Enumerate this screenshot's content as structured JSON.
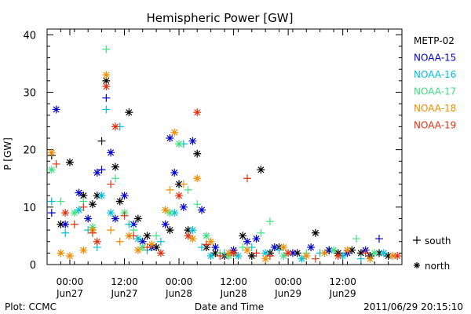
{
  "chart_data": {
    "type": "scatter",
    "title": "Hemispheric Power [GW]",
    "ylabel": "P [GW]",
    "xlabel": "Date and Time",
    "xlim": [
      "2011-06-26T19:00",
      "2011-06-30T01:00"
    ],
    "ylim": [
      0,
      41
    ],
    "grid": false,
    "y_ticks": [
      "0",
      "10",
      "20",
      "30",
      "40"
    ],
    "x_ticks": [
      {
        "time": "00:00",
        "date": "Jun27",
        "at": "2011-06-27T00:00"
      },
      {
        "time": "12:00",
        "date": "Jun27",
        "at": "2011-06-27T12:00"
      },
      {
        "time": "00:00",
        "date": "Jun28",
        "at": "2011-06-28T00:00"
      },
      {
        "time": "12:00",
        "date": "Jun28",
        "at": "2011-06-28T12:00"
      },
      {
        "time": "00:00",
        "date": "Jun29",
        "at": "2011-06-29T00:00"
      },
      {
        "time": "12:00",
        "date": "Jun29",
        "at": "2011-06-29T12:00"
      }
    ],
    "legend_placement": "right",
    "marker_legend": [
      {
        "marker": "+",
        "label": "south"
      },
      {
        "marker": "*",
        "label": "north"
      }
    ],
    "series": [
      {
        "name": "METP-02",
        "color": "#000000",
        "points": [
          [
            "2011-06-26T20:00",
            19,
            "+"
          ],
          [
            "2011-06-26T22:00",
            7,
            "*"
          ],
          [
            "2011-06-27T00:00",
            17.8,
            "*"
          ],
          [
            "2011-06-27T03:00",
            12,
            "*"
          ],
          [
            "2011-06-27T05:00",
            10.5,
            "*"
          ],
          [
            "2011-06-27T06:00",
            12,
            "*"
          ],
          [
            "2011-06-27T07:00",
            21.5,
            "+"
          ],
          [
            "2011-06-27T08:00",
            32,
            "*"
          ],
          [
            "2011-06-27T10:00",
            17,
            "*"
          ],
          [
            "2011-06-27T11:00",
            11,
            "*"
          ],
          [
            "2011-06-27T13:00",
            26.5,
            "*"
          ],
          [
            "2011-06-27T15:00",
            8,
            "*"
          ],
          [
            "2011-06-27T17:00",
            5,
            "*"
          ],
          [
            "2011-06-27T19:00",
            3,
            "*"
          ],
          [
            "2011-06-27T22:00",
            6,
            "*"
          ],
          [
            "2011-06-28T00:00",
            14,
            "*"
          ],
          [
            "2011-06-28T02:00",
            6,
            "*"
          ],
          [
            "2011-06-28T04:00",
            19.3,
            "*"
          ],
          [
            "2011-06-28T06:00",
            3,
            "*"
          ],
          [
            "2011-06-28T08:00",
            2,
            "*"
          ],
          [
            "2011-06-28T10:00",
            1.5,
            "*"
          ],
          [
            "2011-06-28T14:00",
            5,
            "*"
          ],
          [
            "2011-06-28T16:00",
            1.5,
            "*"
          ],
          [
            "2011-06-28T18:00",
            16.5,
            "*"
          ],
          [
            "2011-06-28T20:00",
            2,
            "*"
          ],
          [
            "2011-06-28T22:00",
            3,
            "*"
          ],
          [
            "2011-06-29T02:00",
            2,
            "*"
          ],
          [
            "2011-06-29T06:00",
            5.5,
            "*"
          ],
          [
            "2011-06-29T09:00",
            2.5,
            "*"
          ],
          [
            "2011-06-29T11:00",
            2,
            "*"
          ],
          [
            "2011-06-29T14:00",
            2.5,
            "*"
          ],
          [
            "2011-06-29T16:00",
            2,
            "*"
          ],
          [
            "2011-06-29T18:00",
            1.5,
            "*"
          ],
          [
            "2011-06-29T20:00",
            2,
            "*"
          ],
          [
            "2011-06-29T22:00",
            1.5,
            "*"
          ]
        ]
      },
      {
        "name": "NOAA-15",
        "color": "#0000cc",
        "points": [
          [
            "2011-06-26T21:00",
            27,
            "*"
          ],
          [
            "2011-06-26T20:00",
            9,
            "+"
          ],
          [
            "2011-06-26T23:00",
            7,
            "*"
          ],
          [
            "2011-06-27T02:00",
            12.5,
            "*"
          ],
          [
            "2011-06-27T04:00",
            8,
            "*"
          ],
          [
            "2011-06-27T06:00",
            16,
            "*"
          ],
          [
            "2011-06-27T07:00",
            16.5,
            "+"
          ],
          [
            "2011-06-27T08:00",
            29,
            "+"
          ],
          [
            "2011-06-27T09:00",
            19.5,
            "*"
          ],
          [
            "2011-06-27T10:00",
            8,
            "*"
          ],
          [
            "2011-06-27T12:00",
            12,
            "*"
          ],
          [
            "2011-06-27T14:00",
            7,
            "*"
          ],
          [
            "2011-06-27T16:00",
            4,
            "*"
          ],
          [
            "2011-06-27T18:00",
            3,
            "*"
          ],
          [
            "2011-06-27T21:00",
            7,
            "*"
          ],
          [
            "2011-06-27T22:00",
            22,
            "*"
          ],
          [
            "2011-06-27T23:00",
            16,
            "*"
          ],
          [
            "2011-06-28T01:00",
            10,
            "*"
          ],
          [
            "2011-06-28T03:00",
            21.5,
            "*"
          ],
          [
            "2011-06-28T05:00",
            9.5,
            "*"
          ],
          [
            "2011-06-28T08:00",
            3,
            "*"
          ],
          [
            "2011-06-28T12:00",
            2.5,
            "*"
          ],
          [
            "2011-06-28T15:00",
            4,
            "*"
          ],
          [
            "2011-06-28T17:00",
            4.5,
            "*"
          ],
          [
            "2011-06-28T21:00",
            3,
            "*"
          ],
          [
            "2011-06-29T01:00",
            2,
            "*"
          ],
          [
            "2011-06-29T05:00",
            3,
            "*"
          ],
          [
            "2011-06-29T09:00",
            2.5,
            "*"
          ],
          [
            "2011-06-29T13:00",
            2,
            "*"
          ],
          [
            "2011-06-29T17:00",
            2.5,
            "*"
          ],
          [
            "2011-06-29T20:00",
            4.5,
            "+"
          ]
        ]
      },
      {
        "name": "NOAA-16",
        "color": "#00c0d8",
        "points": [
          [
            "2011-06-26T20:00",
            11,
            "+"
          ],
          [
            "2011-06-26T23:00",
            5.5,
            "+"
          ],
          [
            "2011-06-27T02:00",
            9.5,
            "*"
          ],
          [
            "2011-06-27T04:00",
            6,
            "+"
          ],
          [
            "2011-06-27T06:00",
            3,
            "+"
          ],
          [
            "2011-06-27T07:00",
            12,
            "*"
          ],
          [
            "2011-06-27T08:00",
            27,
            "+"
          ],
          [
            "2011-06-27T09:00",
            9,
            "*"
          ],
          [
            "2011-06-27T11:00",
            24,
            "+"
          ],
          [
            "2011-06-27T13:00",
            7,
            "+"
          ],
          [
            "2011-06-27T15:00",
            4.5,
            "*"
          ],
          [
            "2011-06-27T17:00",
            2.5,
            "+"
          ],
          [
            "2011-06-27T20:00",
            4,
            "+"
          ],
          [
            "2011-06-27T23:00",
            9,
            "*"
          ],
          [
            "2011-06-28T01:00",
            21,
            "+"
          ],
          [
            "2011-06-28T03:00",
            6,
            "*"
          ],
          [
            "2011-06-28T05:00",
            3,
            "+"
          ],
          [
            "2011-06-28T07:00",
            1.5,
            "*"
          ],
          [
            "2011-06-28T10:00",
            2,
            "+"
          ],
          [
            "2011-06-28T13:00",
            1.5,
            "*"
          ],
          [
            "2011-06-28T16:00",
            3,
            "+"
          ],
          [
            "2011-06-28T19:00",
            2,
            "*"
          ],
          [
            "2011-06-28T22:00",
            2.5,
            "+"
          ],
          [
            "2011-06-29T03:00",
            1,
            "*"
          ],
          [
            "2011-06-29T07:00",
            2,
            "+"
          ],
          [
            "2011-06-29T12:00",
            1.5,
            "*"
          ],
          [
            "2011-06-29T16:00",
            1,
            "+"
          ],
          [
            "2011-06-29T21:00",
            2,
            "*"
          ]
        ]
      },
      {
        "name": "NOAA-17",
        "color": "#40e080",
        "points": [
          [
            "2011-06-26T20:00",
            16.5,
            "*"
          ],
          [
            "2011-06-26T22:00",
            11,
            "+"
          ],
          [
            "2011-06-27T01:00",
            9,
            "*"
          ],
          [
            "2011-06-27T03:00",
            11,
            "+"
          ],
          [
            "2011-06-27T05:00",
            6.5,
            "*"
          ],
          [
            "2011-06-27T08:00",
            37.5,
            "+"
          ],
          [
            "2011-06-27T10:00",
            15,
            "+"
          ],
          [
            "2011-06-27T12:00",
            9,
            "*"
          ],
          [
            "2011-06-27T14:00",
            6,
            "+"
          ],
          [
            "2011-06-27T16:00",
            3,
            "*"
          ],
          [
            "2011-06-27T19:00",
            5,
            "+"
          ],
          [
            "2011-06-27T22:00",
            9,
            "*"
          ],
          [
            "2011-06-28T00:00",
            21,
            "*"
          ],
          [
            "2011-06-28T02:00",
            13,
            "+"
          ],
          [
            "2011-06-28T04:00",
            10.5,
            "+"
          ],
          [
            "2011-06-28T06:00",
            5,
            "*"
          ],
          [
            "2011-06-28T09:00",
            2,
            "+"
          ],
          [
            "2011-06-28T11:00",
            1.5,
            "*"
          ],
          [
            "2011-06-28T14:00",
            3,
            "+"
          ],
          [
            "2011-06-28T18:00",
            5.5,
            "+"
          ],
          [
            "2011-06-28T20:00",
            7.5,
            "+"
          ],
          [
            "2011-06-28T23:00",
            1.5,
            "*"
          ],
          [
            "2011-06-29T04:00",
            2,
            "+"
          ],
          [
            "2011-06-29T10:00",
            2.5,
            "*"
          ],
          [
            "2011-06-29T15:00",
            4.5,
            "+"
          ],
          [
            "2011-06-29T19:00",
            2,
            "*"
          ]
        ]
      },
      {
        "name": "NOAA-18",
        "color": "#f08c00",
        "points": [
          [
            "2011-06-26T20:00",
            19.5,
            "*"
          ],
          [
            "2011-06-26T22:00",
            2,
            "*"
          ],
          [
            "2011-06-27T00:00",
            1.5,
            "*"
          ],
          [
            "2011-06-27T03:00",
            2.5,
            "*"
          ],
          [
            "2011-06-27T05:00",
            6,
            "*"
          ],
          [
            "2011-06-27T08:00",
            33,
            "*"
          ],
          [
            "2011-06-27T09:00",
            6,
            "+"
          ],
          [
            "2011-06-27T11:00",
            4,
            "+"
          ],
          [
            "2011-06-27T13:00",
            5,
            "*"
          ],
          [
            "2011-06-27T15:00",
            2.5,
            "*"
          ],
          [
            "2011-06-27T18:00",
            3.5,
            "*"
          ],
          [
            "2011-06-27T21:00",
            9.5,
            "*"
          ],
          [
            "2011-06-27T22:00",
            13,
            "+"
          ],
          [
            "2011-06-27T23:00",
            23,
            "*"
          ],
          [
            "2011-06-28T01:00",
            14,
            "+"
          ],
          [
            "2011-06-28T03:00",
            4.5,
            "*"
          ],
          [
            "2011-06-28T04:00",
            15,
            "*"
          ],
          [
            "2011-06-28T07:00",
            4,
            "*"
          ],
          [
            "2011-06-28T11:00",
            2,
            "*"
          ],
          [
            "2011-06-28T15:00",
            2.5,
            "*"
          ],
          [
            "2011-06-28T19:00",
            1,
            "*"
          ],
          [
            "2011-06-28T23:00",
            3,
            "*"
          ],
          [
            "2011-06-29T04:00",
            1.5,
            "*"
          ],
          [
            "2011-06-29T08:00",
            2,
            "*"
          ],
          [
            "2011-06-29T13:00",
            2.5,
            "*"
          ],
          [
            "2011-06-29T18:00",
            1,
            "*"
          ],
          [
            "2011-06-29T23:00",
            1.5,
            "*"
          ]
        ]
      },
      {
        "name": "NOAA-19",
        "color": "#e03010",
        "points": [
          [
            "2011-06-26T21:00",
            17.5,
            "+"
          ],
          [
            "2011-06-26T23:00",
            9,
            "*"
          ],
          [
            "2011-06-27T01:00",
            7,
            "+"
          ],
          [
            "2011-06-27T03:00",
            10,
            "+"
          ],
          [
            "2011-06-27T05:00",
            5.5,
            "+"
          ],
          [
            "2011-06-27T06:00",
            4,
            "*"
          ],
          [
            "2011-06-27T08:00",
            31,
            "*"
          ],
          [
            "2011-06-27T09:00",
            14,
            "+"
          ],
          [
            "2011-06-27T10:00",
            24,
            "*"
          ],
          [
            "2011-06-27T12:00",
            8.5,
            "+"
          ],
          [
            "2011-06-27T14:00",
            5,
            "+"
          ],
          [
            "2011-06-27T17:00",
            3,
            "+"
          ],
          [
            "2011-06-27T20:00",
            2,
            "*"
          ],
          [
            "2011-06-28T00:00",
            12,
            "*"
          ],
          [
            "2011-06-28T02:00",
            5,
            "*"
          ],
          [
            "2011-06-28T04:00",
            26.5,
            "*"
          ],
          [
            "2011-06-28T06:00",
            3.5,
            "+"
          ],
          [
            "2011-06-28T09:00",
            1.5,
            "+"
          ],
          [
            "2011-06-28T12:00",
            2,
            "*"
          ],
          [
            "2011-06-28T15:00",
            15,
            "+"
          ],
          [
            "2011-06-28T17:00",
            2,
            "+"
          ],
          [
            "2011-06-28T20:00",
            1.5,
            "+"
          ],
          [
            "2011-06-29T00:00",
            2,
            "*"
          ],
          [
            "2011-06-29T06:00",
            1,
            "+"
          ],
          [
            "2011-06-29T11:00",
            1.5,
            "*"
          ],
          [
            "2011-06-29T17:00",
            2,
            "+"
          ],
          [
            "2011-06-30T00:00",
            1.5,
            "*"
          ]
        ]
      }
    ]
  },
  "footer": {
    "plot_credit": "Plot: CCMC",
    "timestamp": "2011/06/29 20:15:10"
  }
}
